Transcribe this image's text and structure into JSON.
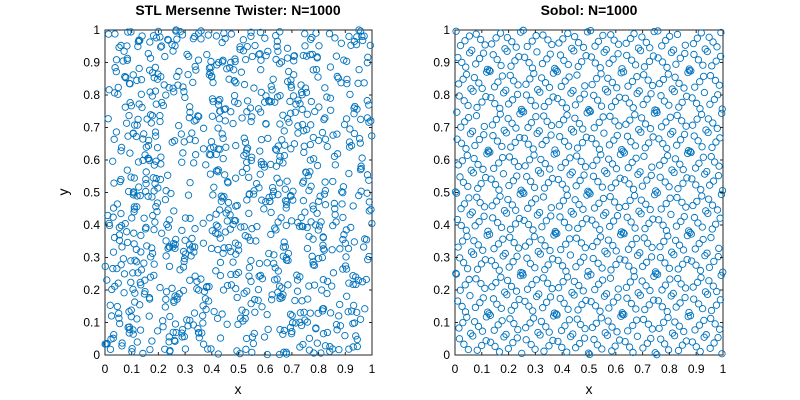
{
  "colors": {
    "marker": "#0072BD",
    "axes": "#262626"
  },
  "chart_data": [
    {
      "type": "scatter",
      "title": "STL Mersenne Twister: N=1000",
      "xlabel": "x",
      "ylabel": "y",
      "xlim": [
        0,
        1
      ],
      "ylim": [
        0,
        1
      ],
      "xticks": [
        "0",
        "0.1",
        "0.2",
        "0.3",
        "0.4",
        "0.5",
        "0.6",
        "0.7",
        "0.8",
        "0.9",
        "1"
      ],
      "yticks": [
        "0",
        "0.1",
        "0.2",
        "0.3",
        "0.4",
        "0.5",
        "0.6",
        "0.7",
        "0.8",
        "0.9",
        "1"
      ],
      "marker": "open-circle",
      "n_points": 1000,
      "generator": "mersenne-twister-uniform",
      "grid": false,
      "legend": "none"
    },
    {
      "type": "scatter",
      "title": "Sobol: N=1000",
      "xlabel": "x",
      "ylabel": "",
      "xlim": [
        0,
        1
      ],
      "ylim": [
        0,
        1
      ],
      "xticks": [
        "0",
        "0.1",
        "0.2",
        "0.3",
        "0.4",
        "0.5",
        "0.6",
        "0.7",
        "0.8",
        "0.9",
        "1"
      ],
      "yticks": [
        "0",
        "0.1",
        "0.2",
        "0.3",
        "0.4",
        "0.5",
        "0.6",
        "0.7",
        "0.8",
        "0.9",
        "1"
      ],
      "marker": "open-circle",
      "n_points": 1000,
      "generator": "sobol-2d",
      "grid": false,
      "legend": "none"
    }
  ]
}
